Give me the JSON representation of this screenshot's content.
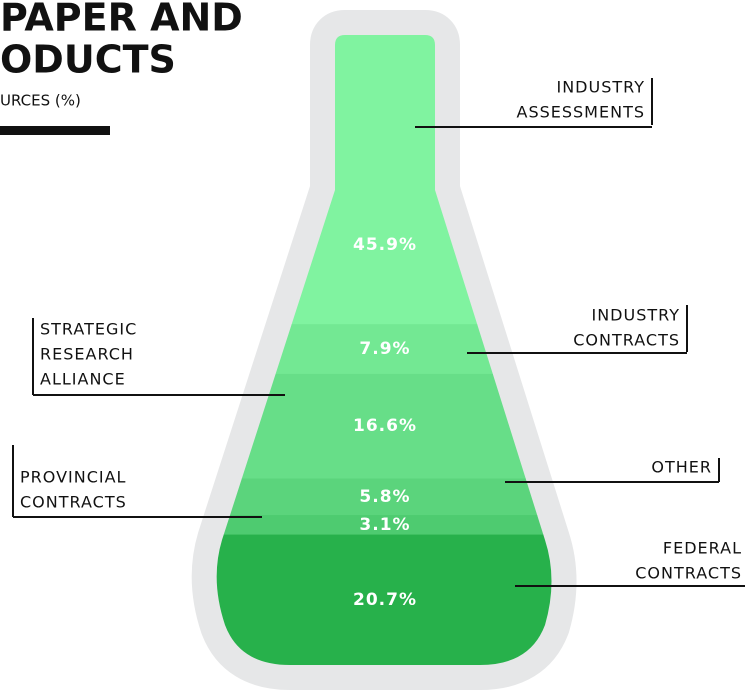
{
  "chart_data": {
    "type": "flask",
    "title": [
      "PAPER AND",
      "ODUCTS"
    ],
    "subtitle": "URCES (%)",
    "categories": [
      [
        "INDUSTRY",
        "ASSESSMENTS"
      ],
      [
        "INDUSTRY",
        "CONTRACTS"
      ],
      [
        "STRATEGIC",
        "RESEARCH",
        "ALLIANCE"
      ],
      [
        "OTHER"
      ],
      [
        "PROVINCIAL",
        "CONTRACTS"
      ],
      [
        "FEDERAL",
        "CONTRACTS"
      ]
    ],
    "values": [
      45.9,
      7.9,
      16.6,
      5.8,
      3.1,
      20.7
    ],
    "value_labels": [
      "45.9%",
      "7.9%",
      "16.6%",
      "5.8%",
      "3.1%",
      "20.7%"
    ],
    "colors": [
      "#80f3a0",
      "#73e893",
      "#67de88",
      "#5bd47c",
      "#4ecb70",
      "#27b14b"
    ]
  }
}
